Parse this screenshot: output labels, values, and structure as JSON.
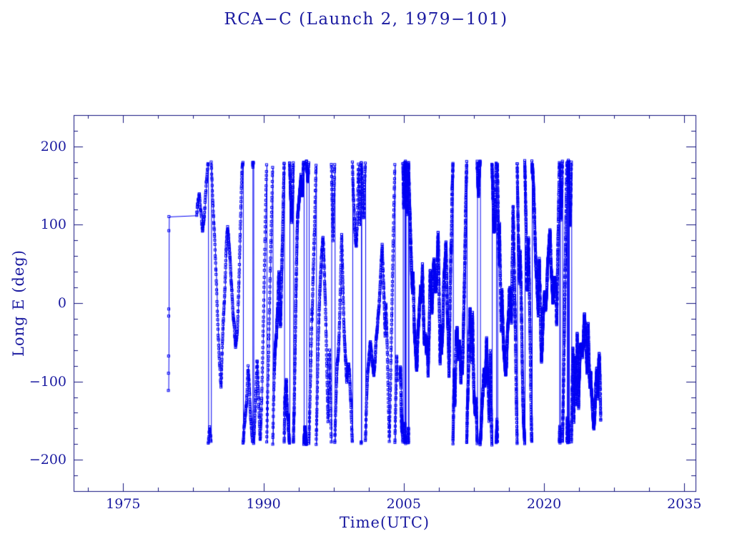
{
  "page": {
    "background": "#ffffff"
  },
  "chart_data": {
    "type": "scatter",
    "title": "RCA−C (Launch 2, 1979−101)",
    "xlabel": "Time(UTC)",
    "ylabel": "Long E (deg)",
    "xlim": [
      1969.7,
      2036.2
    ],
    "ylim": [
      -240,
      240
    ],
    "x_major_ticks": [
      1975,
      1990,
      2005,
      2020,
      2035
    ],
    "x_tick_labels": [
      "1975",
      "1990",
      "2005",
      "2020",
      "2035"
    ],
    "x_minor_step": 3.75,
    "y_major_ticks": [
      -200,
      -100,
      0,
      100,
      200
    ],
    "y_tick_labels": [
      "−200",
      "−100",
      "0",
      "100",
      "200"
    ],
    "y_minor_step": 20,
    "grid": false,
    "legend": null,
    "marker": "open-square",
    "marker_size_px": 3,
    "colors": {
      "data": "#0202f2",
      "axis": "#12127e",
      "text": "#1a1aa0",
      "background": "#ffffff"
    },
    "wrap_range": [
      -180,
      180
    ],
    "early_segment": {
      "comment_visible_content": "isolated vertical strand of points at ~1979.9 connected by a line, then a near-horizontal connector to the start of the continuous data at ~1983",
      "t": [
        1979.87,
        1979.88,
        1979.89,
        1979.9,
        1979.91,
        1979.92,
        1979.93
      ],
      "values": [
        -112,
        -90,
        -68,
        -17,
        -8,
        92,
        110
      ]
    },
    "main_segment": {
      "start_value": 107,
      "value_noise_deg": 4,
      "sign_flip_probability": 0.02,
      "seed": 1979101,
      "epochs": [
        {
          "t0": 1982.9,
          "t1": 1985.5,
          "pts_per_year": 55,
          "drift_deg_per_year": 260,
          "gap_before": false
        },
        {
          "t0": 1985.5,
          "t1": 1991.2,
          "pts_per_year": 85,
          "drift_deg_per_year": 330,
          "gap_before": false
        },
        {
          "t0": 1991.2,
          "t1": 1994.8,
          "pts_per_year": 230,
          "drift_deg_per_year": 420,
          "gap_before": false
        },
        {
          "t0": 1994.8,
          "t1": 2004.35,
          "pts_per_year": 110,
          "drift_deg_per_year": 330,
          "gap_before": false
        },
        {
          "t0": 2004.65,
          "t1": 2026.1,
          "pts_per_year": 300,
          "drift_deg_per_year": 460,
          "gap_before": true
        }
      ]
    }
  }
}
